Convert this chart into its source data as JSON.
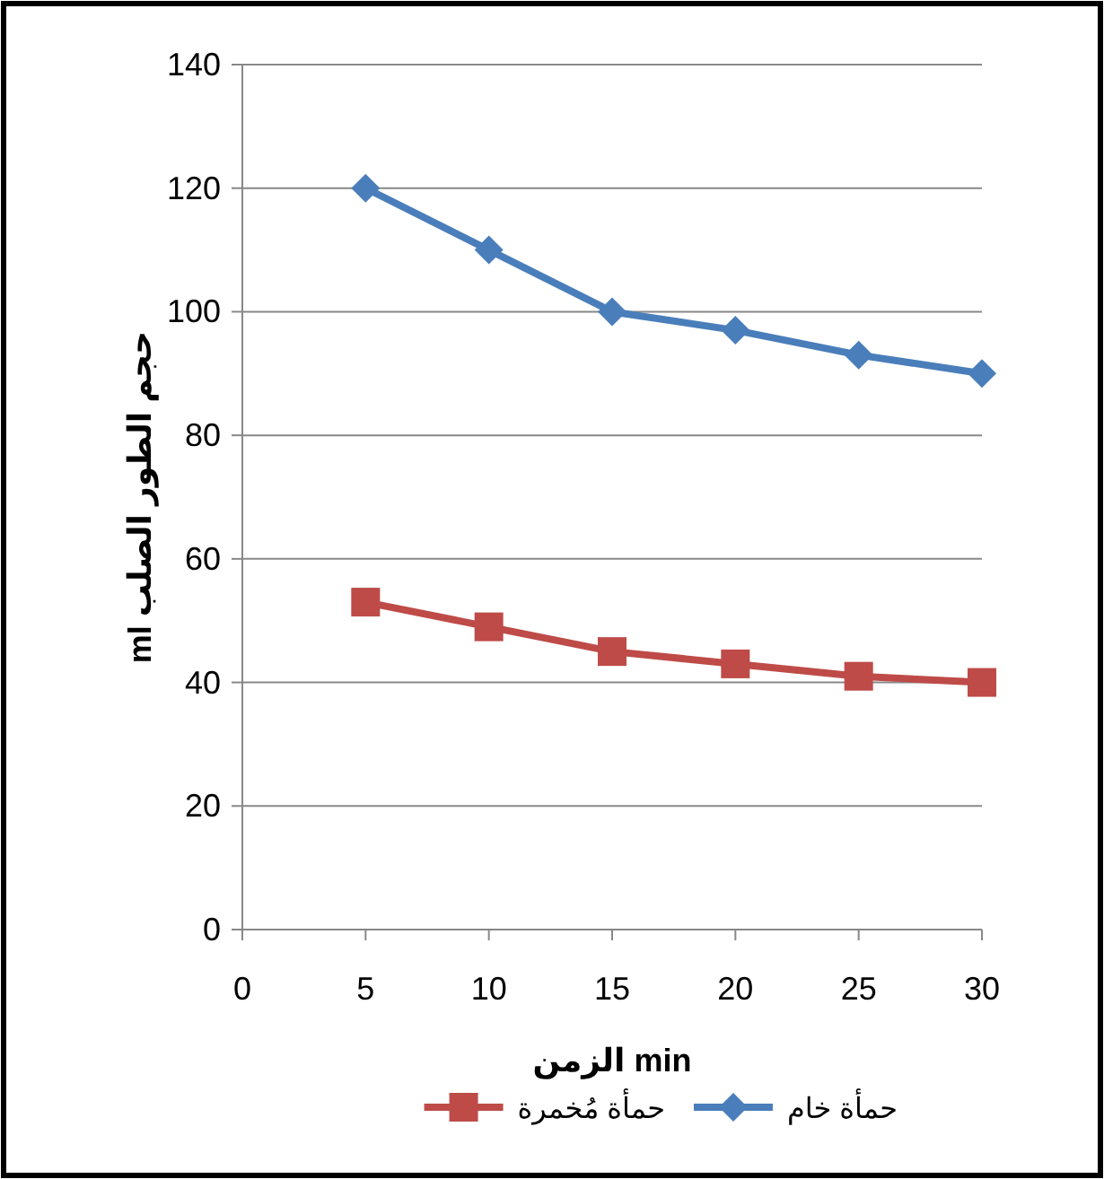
{
  "chart_data": {
    "type": "line",
    "xlabel": "min الزمن",
    "ylabel": "حجم الطور الصلب ml",
    "x": [
      5,
      10,
      15,
      20,
      25,
      30
    ],
    "series": [
      {
        "name": "حمأة خام",
        "color": "#4a7ebb",
        "marker": "diamond",
        "values": [
          120,
          110,
          100,
          97,
          93,
          90
        ]
      },
      {
        "name": "حمأة مُخمرة",
        "color": "#be4b48",
        "marker": "square",
        "values": [
          53,
          49,
          45,
          43,
          41,
          40
        ]
      }
    ],
    "xlim": [
      0,
      30
    ],
    "xticks": [
      0,
      5,
      10,
      15,
      20,
      25,
      30
    ],
    "ylim": [
      0,
      140
    ],
    "yticks": [
      0,
      20,
      40,
      60,
      80,
      100,
      120,
      140
    ],
    "grid": "y",
    "legend": "bottom",
    "line_style": "solid"
  }
}
